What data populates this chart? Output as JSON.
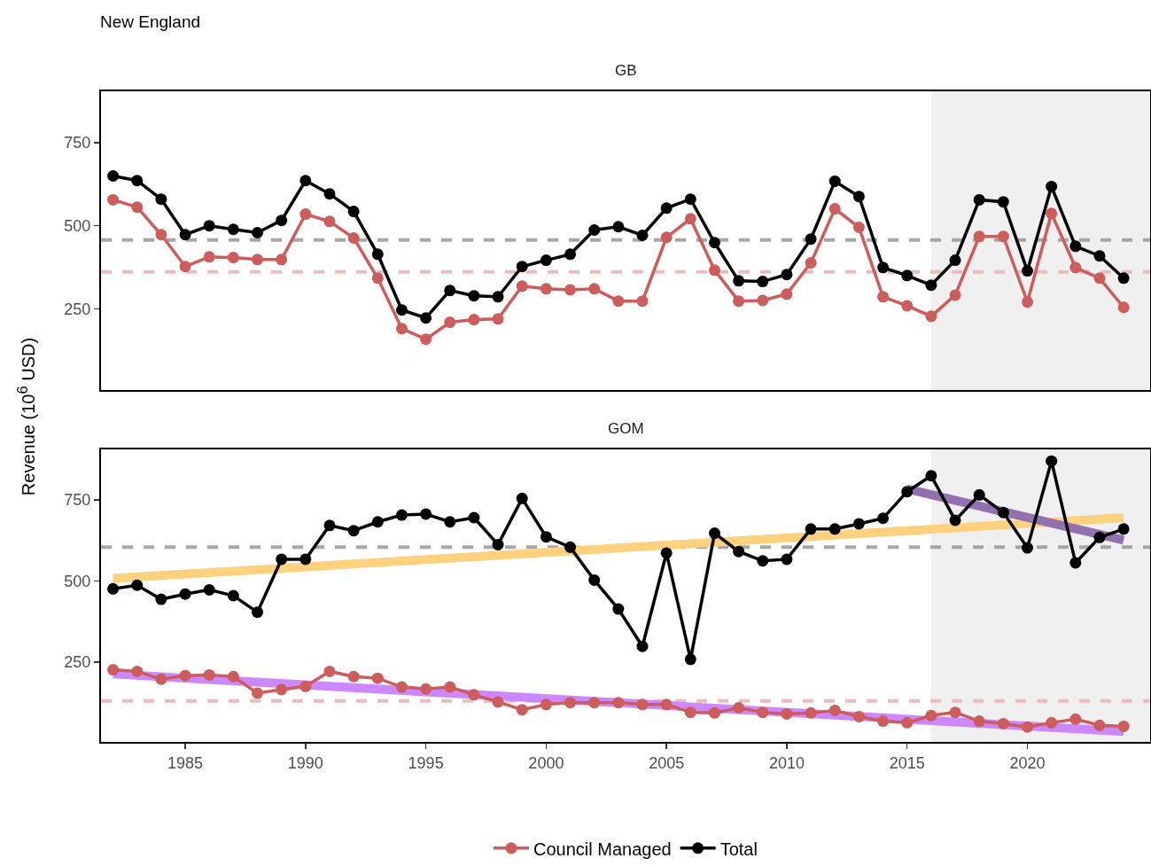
{
  "chart_data": [
    {
      "type": "line",
      "title": "New England",
      "subtitle": "GB",
      "ylabel": "Revenue (10$^{6}$ USD)",
      "x": [
        1982,
        1983,
        1984,
        1985,
        1986,
        1987,
        1988,
        1989,
        1990,
        1991,
        1992,
        1993,
        1994,
        1995,
        1996,
        1997,
        1998,
        1999,
        2000,
        2001,
        2002,
        2003,
        2004,
        2005,
        2006,
        2007,
        2008,
        2009,
        2010,
        2011,
        2012,
        2013,
        2014,
        2015,
        2016,
        2017,
        2018,
        2019,
        2020,
        2021,
        2022,
        2023,
        2024
      ],
      "series": [
        {
          "color": "#cd5c5c",
          "values": [
            578,
            556,
            473,
            377,
            406,
            404,
            398,
            398,
            535,
            513,
            463,
            342,
            190,
            158,
            209,
            217,
            219,
            318,
            310,
            307,
            310,
            273,
            273,
            465,
            521,
            366,
            273,
            275,
            294,
            388,
            551,
            495,
            286,
            259,
            227,
            291,
            468,
            468,
            270,
            537,
            374,
            342,
            254
          ]
        },
        {
          "color": "#000000",
          "values": [
            650,
            636,
            580,
            473,
            500,
            489,
            479,
            516,
            636,
            596,
            543,
            414,
            246,
            222,
            305,
            289,
            286,
            377,
            396,
            414,
            487,
            497,
            471,
            553,
            580,
            449,
            334,
            332,
            353,
            460,
            634,
            588,
            374,
            350,
            321,
            396,
            578,
            572,
            364,
            618,
            438,
            409,
            342
          ]
        }
      ],
      "xlim": [
        1981.5,
        2025.1
      ],
      "ylim": [
        5,
        905
      ],
      "yticks": [
        250,
        500,
        750
      ],
      "tick_labels": "y",
      "ref_lines": [
        {
          "axis": "y",
          "value": 457,
          "color": "#a6a6a6",
          "line_style": "dashed"
        },
        {
          "axis": "y",
          "value": 361,
          "color": "#ebbcbc",
          "line_style": "dashed"
        }
      ],
      "bands": [
        {
          "axis": "x",
          "from": 2016,
          "to": 2025.1,
          "color": "#f0f0f0"
        }
      ],
      "marker": "circle",
      "line_style": "solid",
      "grid": false
    },
    {
      "type": "line",
      "subtitle": "GOM",
      "x": [
        1982,
        1983,
        1984,
        1985,
        1986,
        1987,
        1988,
        1989,
        1990,
        1991,
        1992,
        1993,
        1994,
        1995,
        1996,
        1997,
        1998,
        1999,
        2000,
        2001,
        2002,
        2003,
        2004,
        2005,
        2006,
        2007,
        2008,
        2009,
        2010,
        2011,
        2012,
        2013,
        2014,
        2015,
        2016,
        2017,
        2018,
        2019,
        2020,
        2021,
        2022,
        2023,
        2024
      ],
      "series": [
        {
          "color": "#fed17e",
          "x": [
            1982,
            2024
          ],
          "values": [
            508,
            695
          ],
          "marker": "none"
        },
        {
          "color": "#cc88ff",
          "x": [
            1982,
            2024
          ],
          "values": [
            214,
            37
          ],
          "marker": "none"
        },
        {
          "color": "#9370b0",
          "x": [
            2015,
            2024
          ],
          "values": [
            783,
            626
          ],
          "marker": "none"
        },
        {
          "name": "Council Managed",
          "color": "#cd5c5c",
          "values": [
            227,
            222,
            198,
            209,
            211,
            206,
            155,
            166,
            176,
            222,
            206,
            201,
            174,
            168,
            174,
            150,
            128,
            104,
            120,
            126,
            126,
            126,
            120,
            120,
            96,
            94,
            110,
            96,
            91,
            94,
            102,
            83,
            69,
            64,
            86,
            96,
            69,
            61,
            51,
            64,
            75,
            56,
            53
          ]
        },
        {
          "name": "Total",
          "color": "#000000",
          "values": [
            476,
            487,
            444,
            460,
            473,
            455,
            404,
            567,
            567,
            671,
            655,
            682,
            703,
            706,
            682,
            695,
            612,
            754,
            636,
            604,
            503,
            414,
            299,
            586,
            259,
            647,
            591,
            562,
            567,
            660,
            660,
            676,
            693,
            775,
            824,
            687,
            765,
            711,
            602,
            869,
            556,
            634,
            660
          ]
        }
      ],
      "xlim": [
        1981.5,
        2025.1
      ],
      "xticks": [
        1985,
        1990,
        1995,
        2000,
        2005,
        2010,
        2015,
        2020
      ],
      "ylim": [
        5,
        905
      ],
      "yticks": [
        250,
        500,
        750
      ],
      "ref_lines": [
        {
          "axis": "y",
          "value": 604,
          "color": "#a6a6a6",
          "line_style": "dashed"
        },
        {
          "axis": "y",
          "value": 131,
          "color": "#ebbcbc",
          "line_style": "dashed"
        }
      ],
      "bands": [
        {
          "axis": "x",
          "from": 2016,
          "to": 2025.1,
          "color": "#f0f0f0"
        }
      ],
      "marker": "circle",
      "line_style": "solid",
      "grid": false,
      "legend": "bottom"
    }
  ]
}
